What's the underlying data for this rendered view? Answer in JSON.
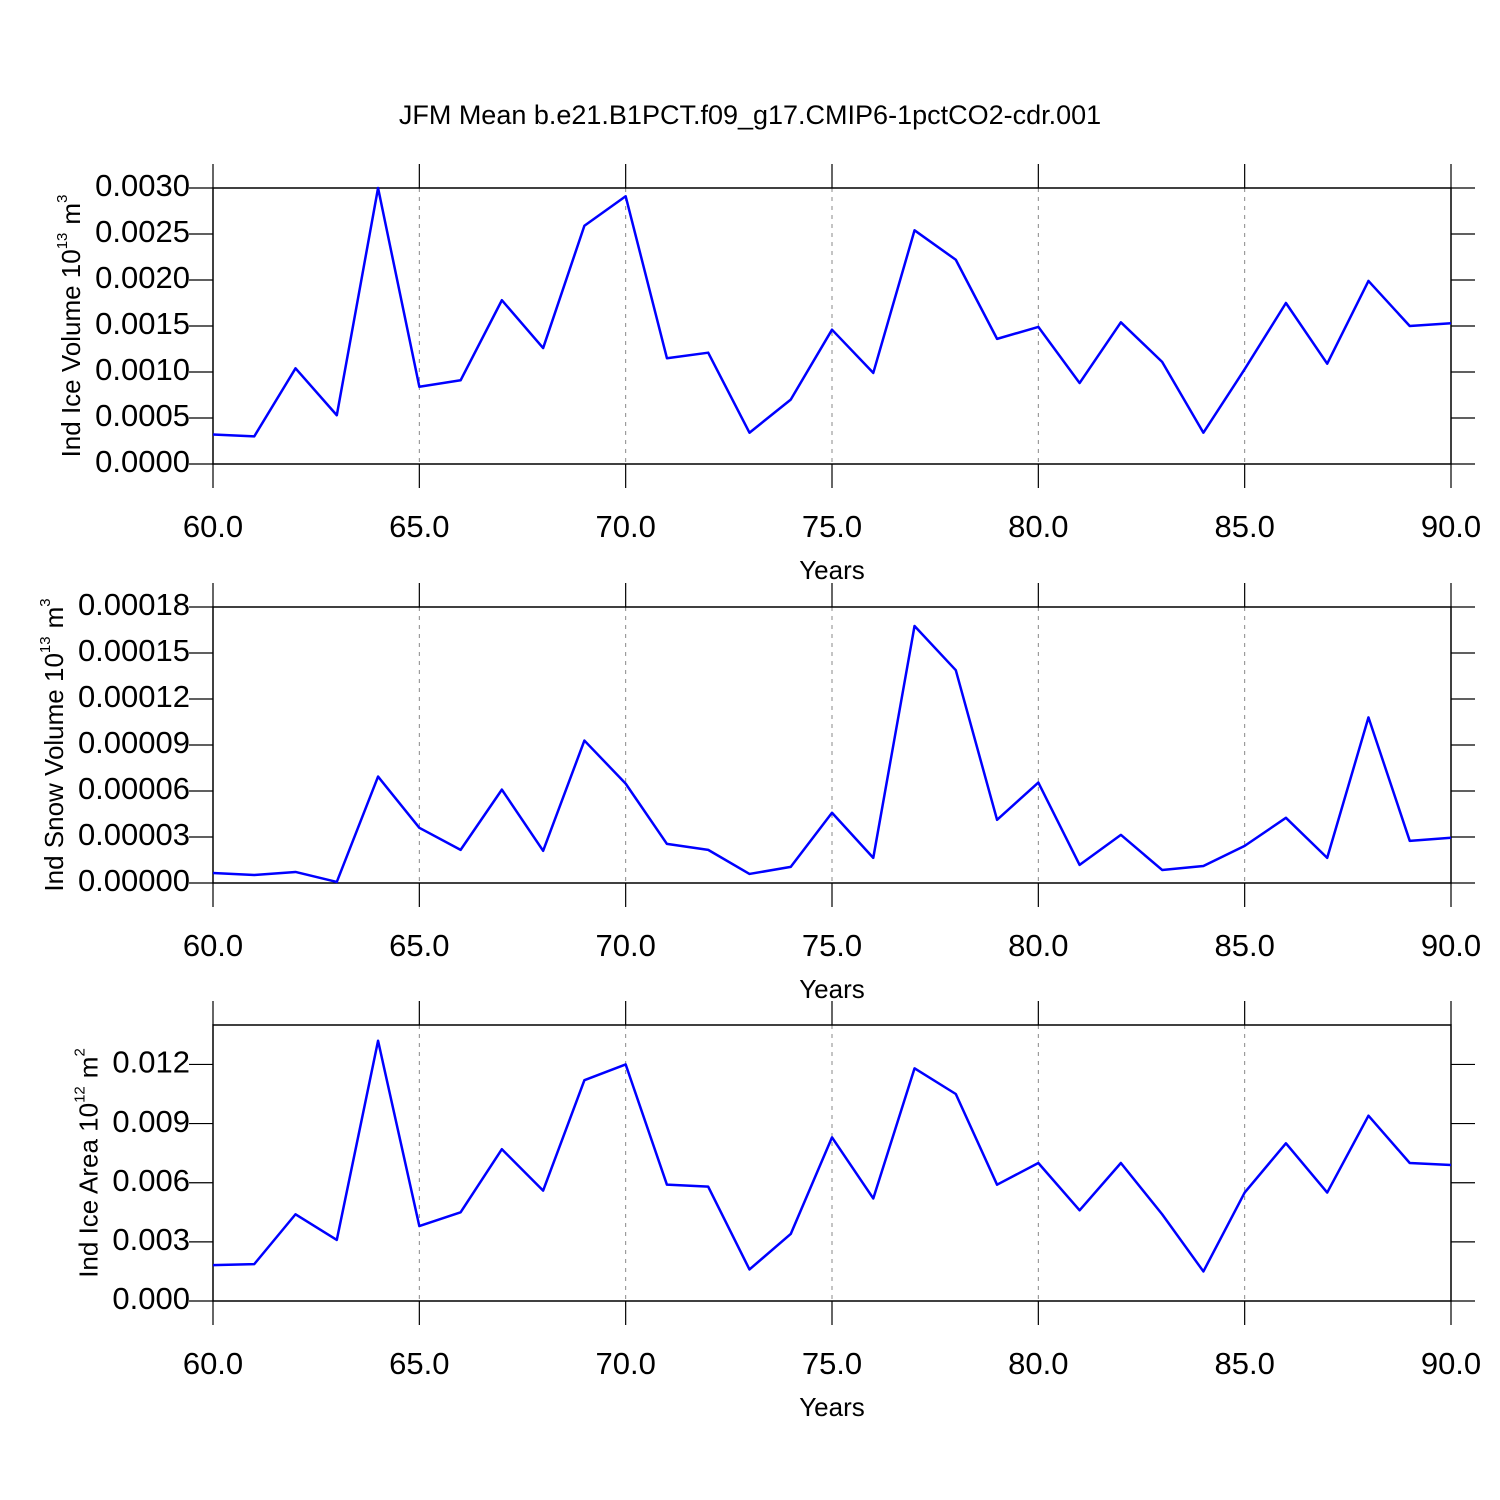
{
  "chart_data": [
    {
      "type": "line",
      "title": "JFM Mean b.e21.B1PCT.f09_g17.CMIP6-1pctCO2-cdr.001",
      "ylabel": [
        "Ind Ice Volume 10",
        "13",
        "m",
        "3"
      ],
      "xlabel": "Years",
      "x": [
        60,
        61,
        62,
        63,
        64,
        65,
        66,
        67,
        68,
        69,
        70,
        71,
        72,
        73,
        74,
        75,
        76,
        77,
        78,
        79,
        80,
        81,
        82,
        83,
        84,
        85,
        86,
        87,
        88,
        89,
        90
      ],
      "values": [
        0.00032,
        0.0003,
        0.00104,
        0.00053,
        0.003,
        0.00084,
        0.00091,
        0.00178,
        0.00126,
        0.00259,
        0.00291,
        0.00115,
        0.00121,
        0.00034,
        0.0007,
        0.00146,
        0.00099,
        0.00254,
        0.00222,
        0.00136,
        0.00149,
        0.00088,
        0.00154,
        0.00111,
        0.00034,
        0.00103,
        0.00175,
        0.00109,
        0.00199,
        0.0015,
        0.00153
      ],
      "color": "#0000ff",
      "xlim": [
        60,
        90
      ],
      "xticks": [
        {
          "value": 60,
          "label": "60.0"
        },
        {
          "value": 65,
          "label": "65.0"
        },
        {
          "value": 70,
          "label": "70.0"
        },
        {
          "value": 75,
          "label": "75.0"
        },
        {
          "value": 80,
          "label": "80.0"
        },
        {
          "value": 85,
          "label": "85.0"
        },
        {
          "value": 90,
          "label": "90.0"
        }
      ],
      "ylim": [
        0,
        0.003
      ],
      "yticks": [
        {
          "value": 0,
          "label": "0.0000"
        },
        {
          "value": 0.0005,
          "label": "0.0005"
        },
        {
          "value": 0.001,
          "label": "0.0010"
        },
        {
          "value": 0.0015,
          "label": "0.0015"
        },
        {
          "value": 0.002,
          "label": "0.0020"
        },
        {
          "value": 0.0025,
          "label": "0.0025"
        },
        {
          "value": 0.003,
          "label": "0.0030"
        }
      ],
      "grid": "x-dashed"
    },
    {
      "type": "line",
      "ylabel": [
        "Ind Snow Volume 10",
        "13",
        "m",
        "3"
      ],
      "xlabel": "Years",
      "x": [
        60,
        61,
        62,
        63,
        64,
        65,
        66,
        67,
        68,
        69,
        70,
        71,
        72,
        73,
        74,
        75,
        76,
        77,
        78,
        79,
        80,
        81,
        82,
        83,
        84,
        85,
        86,
        87,
        88,
        89,
        90
      ],
      "values": [
        6.5e-06,
        5.2e-06,
        7.2e-06,
        7e-07,
        6.94e-05,
        3.6e-05,
        2.16e-05,
        6.09e-05,
        2.1e-05,
        9.29e-05,
        6.48e-05,
        2.55e-05,
        2.16e-05,
        5.9e-06,
        1.05e-05,
        4.58e-05,
        1.64e-05,
        0.0001676,
        0.0001388,
        4.12e-05,
        6.55e-05,
        1.18e-05,
        3.14e-05,
        8.5e-06,
        1.11e-05,
        2.42e-05,
        4.25e-05,
        1.64e-05,
        0.000108,
        2.75e-05,
        2.95e-05
      ],
      "color": "#0000ff",
      "xlim": [
        60,
        90
      ],
      "xticks": [
        {
          "value": 60,
          "label": "60.0"
        },
        {
          "value": 65,
          "label": "65.0"
        },
        {
          "value": 70,
          "label": "70.0"
        },
        {
          "value": 75,
          "label": "75.0"
        },
        {
          "value": 80,
          "label": "80.0"
        },
        {
          "value": 85,
          "label": "85.0"
        },
        {
          "value": 90,
          "label": "90.0"
        }
      ],
      "ylim": [
        0,
        0.00018
      ],
      "yticks": [
        {
          "value": 0,
          "label": "0.00000"
        },
        {
          "value": 3e-05,
          "label": "0.00003"
        },
        {
          "value": 6e-05,
          "label": "0.00006"
        },
        {
          "value": 9e-05,
          "label": "0.00009"
        },
        {
          "value": 0.00012,
          "label": "0.00012"
        },
        {
          "value": 0.00015,
          "label": "0.00015"
        },
        {
          "value": 0.00018,
          "label": "0.00018"
        }
      ],
      "grid": "x-dashed"
    },
    {
      "type": "line",
      "ylabel": [
        "Ind Ice Area 10",
        "12",
        "m",
        "2"
      ],
      "xlabel": "Years",
      "x": [
        60,
        61,
        62,
        63,
        64,
        65,
        66,
        67,
        68,
        69,
        70,
        71,
        72,
        73,
        74,
        75,
        76,
        77,
        78,
        79,
        80,
        81,
        82,
        83,
        84,
        85,
        86,
        87,
        88,
        89,
        90
      ],
      "values": [
        0.00182,
        0.00187,
        0.0044,
        0.0031,
        0.0132,
        0.0038,
        0.0045,
        0.0077,
        0.0056,
        0.0112,
        0.012,
        0.0059,
        0.0058,
        0.0016,
        0.0034,
        0.0083,
        0.0052,
        0.0118,
        0.0105,
        0.0059,
        0.007,
        0.0046,
        0.007,
        0.0044,
        0.0015,
        0.0055,
        0.008,
        0.0055,
        0.0094,
        0.007,
        0.0069
      ],
      "color": "#0000ff",
      "xlim": [
        60,
        90
      ],
      "xticks": [
        {
          "value": 60,
          "label": "60.0"
        },
        {
          "value": 65,
          "label": "65.0"
        },
        {
          "value": 70,
          "label": "70.0"
        },
        {
          "value": 75,
          "label": "75.0"
        },
        {
          "value": 80,
          "label": "80.0"
        },
        {
          "value": 85,
          "label": "85.0"
        },
        {
          "value": 90,
          "label": "90.0"
        }
      ],
      "ylim": [
        0,
        0.014
      ],
      "yticks": [
        {
          "value": 0,
          "label": "0.000"
        },
        0.003,
        0.006,
        0.009,
        0.012
      ],
      "grid": "x-dashed"
    }
  ]
}
